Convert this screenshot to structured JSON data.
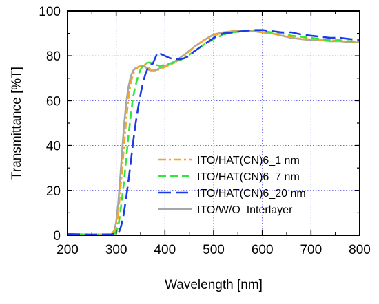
{
  "chart_data": {
    "type": "line",
    "title": "",
    "xlabel": "Wavelength [nm]",
    "ylabel": "Transmittance [%T]",
    "xlim": [
      200,
      800
    ],
    "ylim": [
      0,
      100
    ],
    "x_ticks": [
      200,
      300,
      400,
      500,
      600,
      700,
      800
    ],
    "y_ticks": [
      0,
      20,
      40,
      60,
      80,
      100
    ],
    "grid": true,
    "legend_position": "lower-right",
    "series": [
      {
        "name": "ITO/HAT(CN)6_1 nm",
        "color": "#f5a623",
        "dash": "dash-dot",
        "x": [
          200,
          250,
          290,
          298,
          302,
          306,
          310,
          315,
          320,
          325,
          330,
          335,
          340,
          345,
          350,
          355,
          360,
          365,
          370,
          375,
          380,
          390,
          400,
          420,
          440,
          460,
          480,
          500,
          520,
          540,
          560,
          580,
          600,
          620,
          640,
          660,
          680,
          700,
          720,
          740,
          760,
          780,
          800
        ],
        "y": [
          0.5,
          0.3,
          0.4,
          2,
          6,
          14,
          24,
          37,
          50,
          61,
          68,
          72,
          74,
          75,
          75.5,
          76,
          76,
          75,
          74,
          73.5,
          73.5,
          74,
          75,
          77,
          80,
          84,
          87,
          89,
          90.5,
          91,
          91,
          91,
          90.5,
          90,
          89,
          88.5,
          87.5,
          87.5,
          87,
          87,
          86.5,
          86.5,
          86
        ]
      },
      {
        "name": "ITO/HAT(CN)6_7 nm",
        "color": "#33e63c",
        "dash": "dash",
        "x": [
          200,
          250,
          290,
          300,
          305,
          310,
          315,
          320,
          325,
          330,
          335,
          340,
          345,
          350,
          355,
          360,
          365,
          370,
          375,
          380,
          390,
          400,
          420,
          440,
          460,
          480,
          500,
          520,
          540,
          560,
          580,
          600,
          620,
          640,
          660,
          680,
          700,
          720,
          740,
          760,
          780,
          800
        ],
        "y": [
          0.5,
          0.3,
          0.4,
          1,
          5,
          13,
          22,
          33,
          44,
          54,
          62,
          67,
          71,
          74,
          75.5,
          76.5,
          77,
          77,
          76.5,
          76,
          75.5,
          76,
          77,
          79,
          82,
          85,
          87.5,
          89.5,
          90.5,
          91,
          91,
          91,
          90.5,
          90,
          89,
          88.5,
          88,
          87.5,
          87,
          87,
          86.5,
          86.5
        ]
      },
      {
        "name": "ITO/HAT(CN)6_20 nm",
        "color": "#1a3ce6",
        "dash": "long-dash",
        "x": [
          200,
          250,
          290,
          305,
          310,
          315,
          320,
          325,
          330,
          335,
          340,
          345,
          350,
          355,
          360,
          365,
          370,
          375,
          380,
          385,
          390,
          400,
          410,
          420,
          430,
          440,
          450,
          460,
          480,
          500,
          520,
          540,
          560,
          580,
          600,
          620,
          640,
          660,
          680,
          700,
          720,
          740,
          760,
          780,
          800
        ],
        "y": [
          0.5,
          0.3,
          0.4,
          1,
          4,
          9,
          16,
          24,
          33,
          42,
          50,
          57,
          63,
          68,
          72,
          74.5,
          76,
          76.5,
          79,
          81.5,
          81,
          80,
          79,
          78.5,
          78.5,
          79,
          80,
          82,
          85,
          88,
          90,
          90.5,
          91,
          91.5,
          91.5,
          91,
          90.5,
          90.5,
          89.5,
          89,
          88.5,
          88,
          88,
          87.5,
          87
        ]
      },
      {
        "name": "ITO/W/O_Interlayer",
        "color": "#a6a6a6",
        "dash": "solid",
        "x": [
          200,
          250,
          290,
          296,
          300,
          304,
          308,
          312,
          316,
          320,
          325,
          330,
          335,
          340,
          345,
          350,
          355,
          360,
          365,
          370,
          375,
          380,
          390,
          400,
          420,
          440,
          460,
          480,
          500,
          520,
          540,
          560,
          580,
          600,
          620,
          640,
          660,
          680,
          700,
          720,
          740,
          760,
          780,
          800
        ],
        "y": [
          0.5,
          0.3,
          0.4,
          2,
          6,
          14,
          25,
          37,
          49,
          58,
          66,
          71,
          73.5,
          74.5,
          75,
          75.5,
          75.5,
          75,
          74,
          73.5,
          73.5,
          73.5,
          74.5,
          75.5,
          77.5,
          80.5,
          84,
          87,
          89.5,
          90.5,
          91,
          91,
          91,
          90.5,
          90,
          89,
          88,
          87.5,
          87,
          87,
          86.5,
          86.5,
          86,
          86
        ]
      }
    ]
  }
}
